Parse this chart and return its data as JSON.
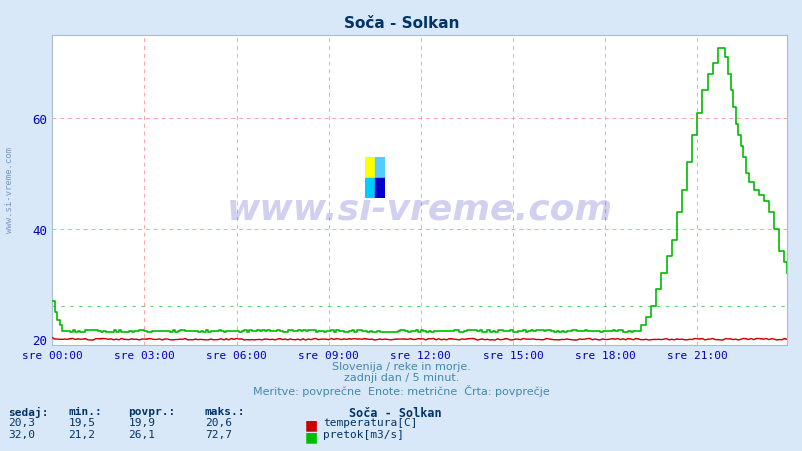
{
  "title": "Soča - Solkan",
  "bg_color": "#d8e8f8",
  "plot_bg_color": "#ffffff",
  "grid_color_major": "#ff9999",
  "x_ticks_labels": [
    "sre 00:00",
    "sre 03:00",
    "sre 06:00",
    "sre 09:00",
    "sre 12:00",
    "sre 15:00",
    "sre 18:00",
    "sre 21:00"
  ],
  "x_ticks_pos": [
    0,
    36,
    72,
    108,
    144,
    180,
    216,
    252
  ],
  "n_points": 288,
  "ylim": [
    19.0,
    75.0
  ],
  "y_ticks": [
    20,
    40,
    60
  ],
  "y_label_color": "#0000bb",
  "watermark_text": "www.si-vreme.com",
  "watermark_color": "#0000aa",
  "watermark_alpha": 0.18,
  "footer_line1": "Slovenija / reke in morje.",
  "footer_line2": "zadnji dan / 5 minut.",
  "footer_line3": "Meritve: povprečne  Enote: metrične  Črta: povprečje",
  "footer_color": "#4488aa",
  "legend_title": "Soča - Solkan",
  "legend_color": "#003366",
  "temp_color": "#cc0000",
  "flow_color": "#00bb00",
  "temp_label": "temperatura[C]",
  "flow_label": "pretok[m3/s]",
  "stats_headers": [
    "sedaj:",
    "min.:",
    "povpr.:",
    "maks.:"
  ],
  "temp_stats": [
    "20,3",
    "19,5",
    "19,9",
    "20,6"
  ],
  "flow_stats": [
    "32,0",
    "21,2",
    "26,1",
    "72,7"
  ],
  "sidebar_text": "www.si-vreme.com",
  "sidebar_color": "#7799bb",
  "avg_flow_line": 26.1,
  "flow_spike_start": 228,
  "flow_peak_idx": 258,
  "flow_peak_val": 72.7,
  "flow_base": 21.5,
  "flow_end": 32.0,
  "temp_base": 20.0,
  "flow_start_bump": 27.0,
  "flow_start_bump_end": 4
}
